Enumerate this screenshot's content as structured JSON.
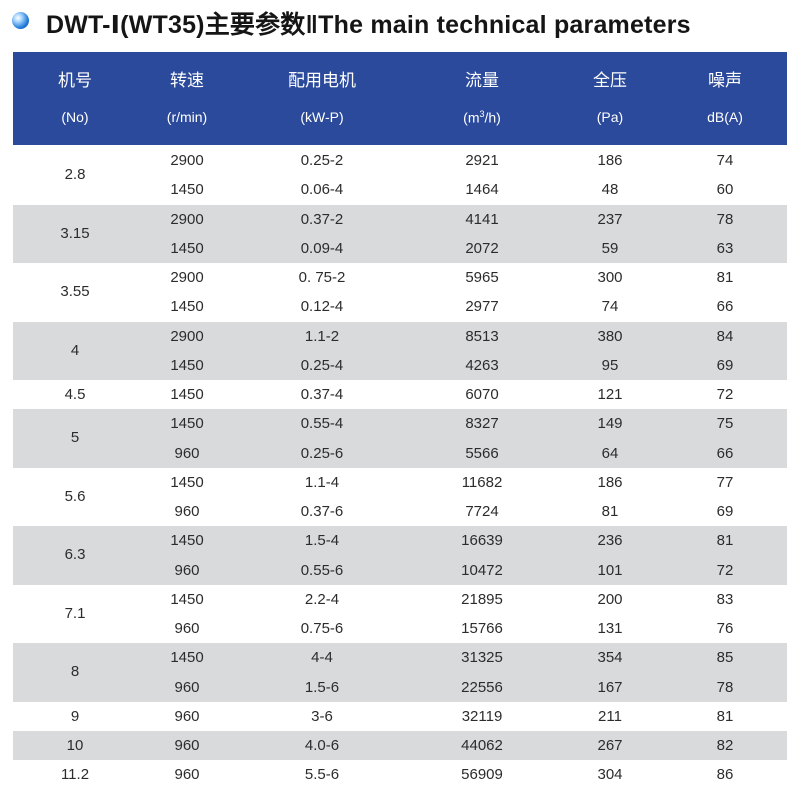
{
  "title": "DWT-Ⅰ(WT35)主要参数‖The main technical parameters",
  "header": {
    "cols": [
      {
        "label": "机号",
        "unit": "(No)"
      },
      {
        "label": "转速",
        "unit": "(r/min)"
      },
      {
        "label": "配用电机",
        "unit": "(kW-P)"
      },
      {
        "label": "流量",
        "unit_pre": "(m",
        "unit_sup": "3",
        "unit_post": "/h)"
      },
      {
        "label": "全压",
        "unit": "(Pa)"
      },
      {
        "label": "噪声",
        "unit": "dB(A)"
      }
    ]
  },
  "groups": [
    {
      "no": "2.8",
      "rows": [
        [
          "2900",
          "0.25-2",
          "2921",
          "186",
          "74"
        ],
        [
          "1450",
          "0.06-4",
          "1464",
          "48",
          "60"
        ]
      ]
    },
    {
      "no": "3.15",
      "rows": [
        [
          "2900",
          "0.37-2",
          "4141",
          "237",
          "78"
        ],
        [
          "1450",
          "0.09-4",
          "2072",
          "59",
          "63"
        ]
      ]
    },
    {
      "no": "3.55",
      "rows": [
        [
          "2900",
          "0. 75-2",
          "5965",
          "300",
          "81"
        ],
        [
          "1450",
          "0.12-4",
          "2977",
          "74",
          "66"
        ]
      ]
    },
    {
      "no": "4",
      "rows": [
        [
          "2900",
          "1.1-2",
          "8513",
          "380",
          "84"
        ],
        [
          "1450",
          "0.25-4",
          "4263",
          "95",
          "69"
        ]
      ]
    },
    {
      "no": "4.5",
      "rows": [
        [
          "1450",
          "0.37-4",
          "6070",
          "121",
          "72"
        ]
      ]
    },
    {
      "no": "5",
      "rows": [
        [
          "1450",
          "0.55-4",
          "8327",
          "149",
          "75"
        ],
        [
          "960",
          "0.25-6",
          "5566",
          "64",
          "66"
        ]
      ]
    },
    {
      "no": "5.6",
      "rows": [
        [
          "1450",
          "1.1-4",
          "11682",
          "186",
          "77"
        ],
        [
          "960",
          "0.37-6",
          "7724",
          "81",
          "69"
        ]
      ]
    },
    {
      "no": "6.3",
      "rows": [
        [
          "1450",
          "1.5-4",
          "16639",
          "236",
          "81"
        ],
        [
          "960",
          "0.55-6",
          "10472",
          "101",
          "72"
        ]
      ]
    },
    {
      "no": "7.1",
      "rows": [
        [
          "1450",
          "2.2-4",
          "21895",
          "200",
          "83"
        ],
        [
          "960",
          "0.75-6",
          "15766",
          "131",
          "76"
        ]
      ]
    },
    {
      "no": "8",
      "rows": [
        [
          "1450",
          "4-4",
          "31325",
          "354",
          "85"
        ],
        [
          "960",
          "1.5-6",
          "22556",
          "167",
          "78"
        ]
      ]
    },
    {
      "no": "9",
      "rows": [
        [
          "960",
          "3-6",
          "32119",
          "211",
          "81"
        ]
      ]
    },
    {
      "no": "10",
      "rows": [
        [
          "960",
          "4.0-6",
          "44062",
          "267",
          "82"
        ]
      ]
    },
    {
      "no": "11.2",
      "rows": [
        [
          "960",
          "5.5-6",
          "56909",
          "304",
          "86"
        ]
      ]
    }
  ],
  "colors": {
    "header_bg": "#2b4a9b",
    "band_gray": "#d9dadb",
    "text": "#2c2c2c",
    "bullet": "#1f79d8"
  }
}
